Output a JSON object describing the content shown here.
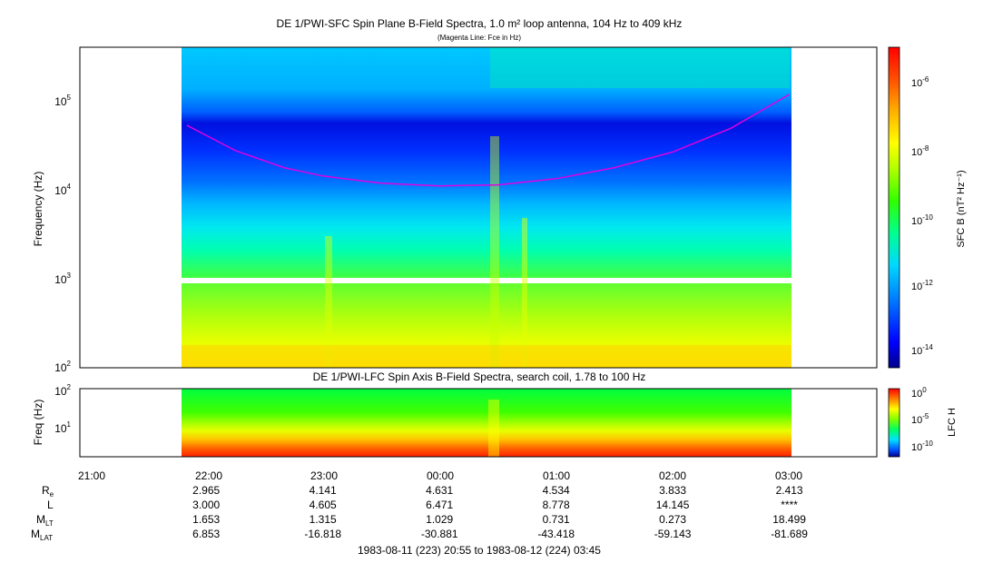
{
  "colors": {
    "fce_line": "#e000e0",
    "colormap": [
      "#00008b",
      "#0000ff",
      "#0070ff",
      "#00d8ff",
      "#00ff80",
      "#40ff00",
      "#c8ff00",
      "#ffff00",
      "#ffb000",
      "#ff5000",
      "#ff0000"
    ]
  },
  "top_panel": {
    "title": "DE 1/PWI-SFC  Spin Plane B-Field Spectra, 1.0 m² loop antenna, 104 Hz to 409 kHz",
    "subtitle": "(Magenta Line: Fce in Hz)",
    "ylabel": "Frequency (Hz)",
    "y_ticks": [
      {
        "label": "10",
        "exp": "2"
      },
      {
        "label": "10",
        "exp": "3"
      },
      {
        "label": "10",
        "exp": "4"
      },
      {
        "label": "10",
        "exp": "5"
      }
    ],
    "colorbar_label": "SFC B (nT² Hz⁻¹)",
    "colorbar_ticks": [
      {
        "label": "10",
        "exp": "-6"
      },
      {
        "label": "10",
        "exp": "-8"
      },
      {
        "label": "10",
        "exp": "-10"
      },
      {
        "label": "10",
        "exp": "-12"
      },
      {
        "label": "10",
        "exp": "-14"
      }
    ]
  },
  "bottom_panel": {
    "title": "DE 1/PWI-LFC  Spin Axis B-Field Spectra, search coil, 1.78 to 100 Hz",
    "ylabel": "Freq (Hz)",
    "y_ticks": [
      {
        "label": "10",
        "exp": "1"
      },
      {
        "label": "10",
        "exp": "2"
      }
    ],
    "colorbar_label": "LFC H",
    "colorbar_ticks": [
      {
        "label": "10",
        "exp": "0"
      },
      {
        "label": "10",
        "exp": "-5"
      },
      {
        "label": "10",
        "exp": "-10"
      }
    ]
  },
  "time_axis": {
    "ticks": [
      "21:00",
      "22:00",
      "23:00",
      "00:00",
      "01:00",
      "02:00",
      "03:00"
    ],
    "range_label": "1983-08-11 (223) 20:55 to 1983-08-12 (224) 03:45"
  },
  "ephemeris": {
    "rows": [
      {
        "name": "R",
        "sub": "e",
        "values": [
          "2.965",
          "4.141",
          "4.631",
          "4.534",
          "3.833",
          "2.413"
        ]
      },
      {
        "name": "L",
        "sub": "",
        "values": [
          "3.000",
          "4.605",
          "6.471",
          "8.778",
          "14.145",
          "****"
        ]
      },
      {
        "name": "M",
        "sub": "LT",
        "values": [
          "1.653",
          "1.315",
          "1.029",
          "0.731",
          "0.273",
          "18.499"
        ]
      },
      {
        "name": "M",
        "sub": "LAT",
        "values": [
          "6.853",
          "-16.818",
          "-30.881",
          "-43.418",
          "-59.143",
          "-81.689"
        ]
      }
    ]
  },
  "chart_data": [
    {
      "type": "heatmap",
      "title": "DE 1/PWI-SFC  Spin Plane B-Field Spectra, 1.0 m² loop antenna, 104 Hz to 409 kHz",
      "xlabel": "",
      "ylabel": "Frequency (Hz)",
      "y_scale": "log",
      "ylim": [
        100,
        409000
      ],
      "x_range": [
        "20:55",
        "03:45"
      ],
      "data_coverage": [
        "21:50",
        "03:00"
      ],
      "colorbar": {
        "label": "SFC B (nT² Hz⁻¹)",
        "scale": "log",
        "range": [
          3e-15,
          1e-05
        ]
      },
      "series": [
        {
          "name": "Fce in Hz",
          "type": "line",
          "x": [
            "21:50",
            "22:15",
            "22:40",
            "23:00",
            "23:30",
            "00:00",
            "00:30",
            "01:00",
            "01:30",
            "02:00",
            "02:30",
            "03:00"
          ],
          "y": [
            54000,
            28000,
            18000,
            14500,
            12000,
            11200,
            11500,
            13500,
            18000,
            27000,
            50000,
            120000
          ]
        }
      ]
    },
    {
      "type": "heatmap",
      "title": "DE 1/PWI-LFC  Spin Axis B-Field Spectra, search coil, 1.78 to 100 Hz",
      "ylabel": "Freq (Hz)",
      "y_scale": "log",
      "ylim": [
        1.78,
        100
      ],
      "x_range": [
        "20:55",
        "03:45"
      ],
      "data_coverage": [
        "21:50",
        "03:00"
      ],
      "colorbar": {
        "label": "LFC H",
        "scale": "log",
        "range": [
          1e-11,
          1
        ]
      }
    }
  ]
}
